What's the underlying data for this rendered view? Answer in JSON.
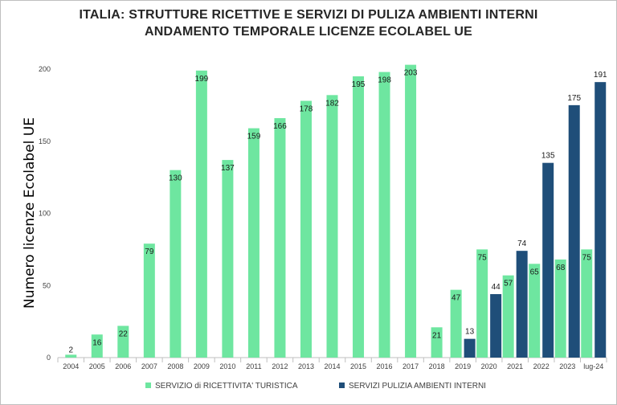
{
  "chart_data": {
    "type": "bar",
    "title": "ITALIA:  STRUTTURE RICETTIVE E SERVIZI DI PULIZA AMBIENTI INTERNI",
    "subtitle": "ANDAMENTO TEMPORALE LICENZE ECOLABEL UE",
    "xlabel": "",
    "ylabel": "Numero licenze Ecolabel UE",
    "categories": [
      "2004",
      "2005",
      "2006",
      "2007",
      "2008",
      "2009",
      "2010",
      "2011",
      "2012",
      "2013",
      "2014",
      "2015",
      "2016",
      "2017",
      "2018",
      "2019",
      "2020",
      "2021",
      "2022",
      "2023",
      "lug-24"
    ],
    "ylim": [
      0,
      200
    ],
    "yticks": [
      0,
      50,
      100,
      150,
      200
    ],
    "grid": false,
    "legend_position": "bottom",
    "series": [
      {
        "name": "SERVIZIO di RICETTIVITA' TURISTICA",
        "color": "#6ee6a0",
        "values": [
          2,
          16,
          22,
          79,
          130,
          199,
          137,
          159,
          166,
          178,
          182,
          195,
          198,
          203,
          21,
          47,
          75,
          57,
          65,
          68,
          75
        ]
      },
      {
        "name": "SERVIZI PULIZIA AMBIENTI INTERNI",
        "color": "#1f4e79",
        "values": [
          null,
          null,
          null,
          null,
          null,
          null,
          null,
          null,
          null,
          null,
          null,
          null,
          null,
          null,
          null,
          13,
          44,
          74,
          135,
          175,
          191
        ]
      }
    ]
  }
}
